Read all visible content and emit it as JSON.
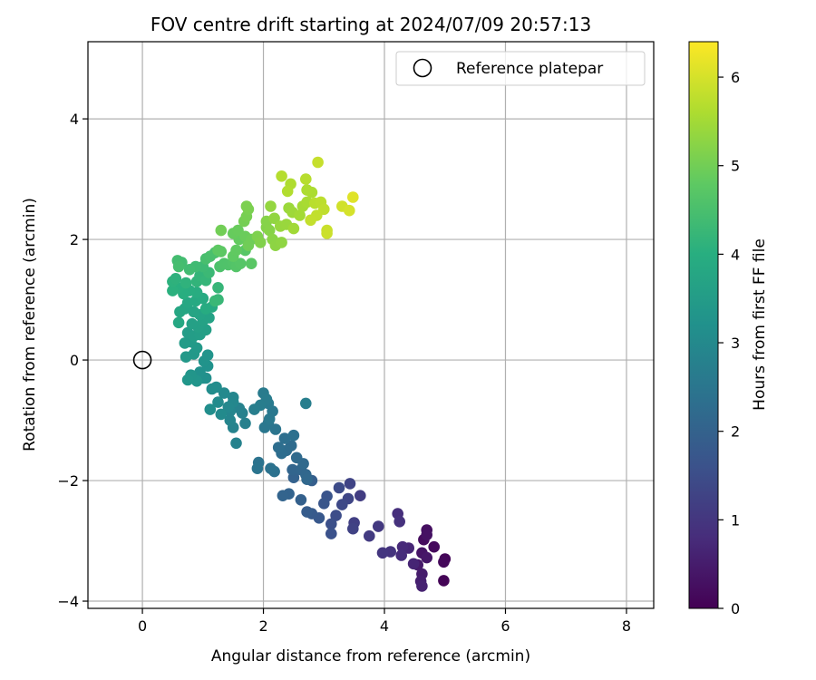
{
  "chart_data": {
    "type": "scatter",
    "title": "FOV centre drift starting at 2024/07/09 20:57:13",
    "xlabel": "Angular distance from reference (arcmin)",
    "ylabel": "Rotation from reference (arcmin)",
    "xlim": [
      -0.9,
      8.45
    ],
    "ylim": [
      -4.12,
      5.28
    ],
    "x_ticks": [
      0,
      2,
      4,
      6,
      8
    ],
    "y_ticks": [
      -4,
      -2,
      0,
      2,
      4
    ],
    "grid": true,
    "legend": {
      "position": "top-right",
      "entries": [
        {
          "label": "Reference platepar",
          "marker": "open-circle"
        }
      ]
    },
    "reference_point": {
      "x": 0,
      "y": 0
    },
    "colorbar": {
      "label": "Hours from first FF file",
      "colormap": "viridis",
      "range": [
        0,
        6.4
      ],
      "ticks": [
        0,
        1,
        2,
        3,
        4,
        5,
        6
      ]
    },
    "drift_points": [
      [
        4.98,
        -3.66,
        0.05
      ],
      [
        5.0,
        -3.3,
        0.08
      ],
      [
        4.98,
        -3.35,
        0.12
      ],
      [
        4.82,
        -3.1,
        0.16
      ],
      [
        4.65,
        -2.98,
        0.2
      ],
      [
        4.7,
        -2.82,
        0.25
      ],
      [
        4.7,
        -2.9,
        0.3
      ],
      [
        4.62,
        -3.2,
        0.35
      ],
      [
        4.7,
        -3.28,
        0.4
      ],
      [
        4.55,
        -3.4,
        0.45
      ],
      [
        4.62,
        -3.55,
        0.5
      ],
      [
        4.6,
        -3.67,
        0.55
      ],
      [
        4.62,
        -3.75,
        0.6
      ],
      [
        4.48,
        -3.38,
        0.65
      ],
      [
        4.4,
        -3.12,
        0.7
      ],
      [
        4.3,
        -3.1,
        0.75
      ],
      [
        4.28,
        -3.24,
        0.8
      ],
      [
        4.22,
        -2.55,
        0.85
      ],
      [
        4.25,
        -2.68,
        0.9
      ],
      [
        4.1,
        -3.18,
        0.95
      ],
      [
        3.97,
        -3.2,
        1.0
      ],
      [
        3.9,
        -2.76,
        1.05
      ],
      [
        3.75,
        -2.92,
        1.1
      ],
      [
        3.6,
        -2.25,
        1.15
      ],
      [
        3.5,
        -2.7,
        1.2
      ],
      [
        3.48,
        -2.8,
        1.25
      ],
      [
        3.43,
        -2.05,
        1.3
      ],
      [
        3.4,
        -2.3,
        1.35
      ],
      [
        3.3,
        -2.4,
        1.4
      ],
      [
        3.25,
        -2.12,
        1.45
      ],
      [
        3.2,
        -2.58,
        1.5
      ],
      [
        3.12,
        -2.72,
        1.55
      ],
      [
        3.12,
        -2.88,
        1.6
      ],
      [
        3.05,
        -2.26,
        1.65
      ],
      [
        3.0,
        -2.38,
        1.7
      ],
      [
        2.92,
        -2.62,
        1.75
      ],
      [
        2.8,
        -2.55,
        1.8
      ],
      [
        2.72,
        -2.52,
        1.85
      ],
      [
        2.8,
        -2.0,
        1.9
      ],
      [
        2.62,
        -2.32,
        1.95
      ],
      [
        2.5,
        -1.95,
        2.0
      ],
      [
        2.42,
        -2.22,
        2.02
      ],
      [
        2.32,
        -2.25,
        2.05
      ],
      [
        2.48,
        -1.82,
        2.08
      ],
      [
        2.62,
        -1.82,
        2.1
      ],
      [
        2.7,
        -1.9,
        2.12
      ],
      [
        2.72,
        -1.98,
        2.15
      ],
      [
        2.66,
        -1.72,
        2.18
      ],
      [
        2.55,
        -1.62,
        2.2
      ],
      [
        2.46,
        -1.42,
        2.22
      ],
      [
        2.38,
        -1.5,
        2.25
      ],
      [
        2.3,
        -1.55,
        2.28
      ],
      [
        2.25,
        -1.45,
        2.3
      ],
      [
        2.35,
        -1.3,
        2.32
      ],
      [
        2.5,
        -1.25,
        2.35
      ],
      [
        2.18,
        -1.85,
        2.38
      ],
      [
        2.12,
        -1.8,
        2.4
      ],
      [
        1.92,
        -1.7,
        2.42
      ],
      [
        1.9,
        -1.8,
        2.45
      ],
      [
        2.2,
        -1.15,
        2.48
      ],
      [
        2.08,
        -1.05,
        2.5
      ],
      [
        2.02,
        -1.12,
        2.52
      ],
      [
        2.15,
        -0.85,
        2.55
      ],
      [
        2.1,
        -0.98,
        2.58
      ],
      [
        2.08,
        -0.72,
        2.6
      ],
      [
        2.0,
        -0.55,
        2.62
      ],
      [
        2.05,
        -0.65,
        2.65
      ],
      [
        1.95,
        -0.75,
        2.68
      ],
      [
        1.85,
        -0.82,
        2.7
      ],
      [
        2.7,
        -0.72,
        2.72
      ],
      [
        1.7,
        -1.05,
        2.75
      ],
      [
        1.65,
        -0.88,
        2.78
      ],
      [
        1.6,
        -0.8,
        2.8
      ],
      [
        1.55,
        -1.38,
        2.82
      ],
      [
        1.5,
        -1.12,
        2.85
      ],
      [
        1.45,
        -1.0,
        2.88
      ],
      [
        1.45,
        -0.85,
        2.9
      ],
      [
        1.5,
        -0.62,
        2.92
      ],
      [
        1.5,
        -0.7,
        2.95
      ],
      [
        1.42,
        -0.78,
        2.98
      ],
      [
        1.35,
        -0.55,
        3.0
      ],
      [
        1.3,
        -0.9,
        3.02
      ],
      [
        1.25,
        -0.7,
        3.05
      ],
      [
        1.22,
        -0.45,
        3.08
      ],
      [
        1.15,
        -0.48,
        3.1
      ],
      [
        1.12,
        -0.82,
        3.12
      ],
      [
        1.05,
        -0.3,
        3.15
      ],
      [
        1.0,
        -0.3,
        3.18
      ],
      [
        0.95,
        -0.2,
        3.2
      ],
      [
        1.08,
        -0.1,
        3.22
      ],
      [
        1.02,
        -0.02,
        3.25
      ],
      [
        1.08,
        0.08,
        3.28
      ],
      [
        0.9,
        -0.35,
        3.3
      ],
      [
        0.8,
        -0.25,
        3.32
      ],
      [
        0.75,
        -0.33,
        3.35
      ],
      [
        0.85,
        0.1,
        3.38
      ],
      [
        0.72,
        0.05,
        3.4
      ],
      [
        0.9,
        0.2,
        3.42
      ],
      [
        0.8,
        0.3,
        3.45
      ],
      [
        0.7,
        0.28,
        3.48
      ],
      [
        0.75,
        0.45,
        3.5
      ],
      [
        0.85,
        0.4,
        3.52
      ],
      [
        0.95,
        0.42,
        3.55
      ],
      [
        1.05,
        0.5,
        3.58
      ],
      [
        0.92,
        0.55,
        3.6
      ],
      [
        0.82,
        0.6,
        3.62
      ],
      [
        1.0,
        0.65,
        3.65
      ],
      [
        1.1,
        0.7,
        3.68
      ],
      [
        0.95,
        0.75,
        3.7
      ],
      [
        0.85,
        0.8,
        3.72
      ],
      [
        0.7,
        0.85,
        3.75
      ],
      [
        0.62,
        0.8,
        3.78
      ],
      [
        0.6,
        0.62,
        3.8
      ],
      [
        0.75,
        0.95,
        3.82
      ],
      [
        0.88,
        0.98,
        3.85
      ],
      [
        1.0,
        1.02,
        3.88
      ],
      [
        1.15,
        0.88,
        3.9
      ],
      [
        1.05,
        0.85,
        3.92
      ],
      [
        0.9,
        1.12,
        3.95
      ],
      [
        0.78,
        1.15,
        3.98
      ],
      [
        0.68,
        1.1,
        4.0
      ],
      [
        0.6,
        1.2,
        4.02
      ],
      [
        0.5,
        1.15,
        4.05
      ],
      [
        0.5,
        1.3,
        4.08
      ],
      [
        0.55,
        1.35,
        4.1
      ],
      [
        0.72,
        1.28,
        4.12
      ],
      [
        0.9,
        1.3,
        4.15
      ],
      [
        0.95,
        1.4,
        4.18
      ],
      [
        1.05,
        1.32,
        4.2
      ],
      [
        1.25,
        1.2,
        4.22
      ],
      [
        1.25,
        1.0,
        4.25
      ],
      [
        1.2,
        0.98,
        4.28
      ],
      [
        1.1,
        1.45,
        4.3
      ],
      [
        1.0,
        1.55,
        4.32
      ],
      [
        0.88,
        1.55,
        4.35
      ],
      [
        0.78,
        1.5,
        4.38
      ],
      [
        0.65,
        1.62,
        4.4
      ],
      [
        0.58,
        1.65,
        4.42
      ],
      [
        0.6,
        1.55,
        4.45
      ],
      [
        1.05,
        1.68,
        4.48
      ],
      [
        1.12,
        1.72,
        4.5
      ],
      [
        1.2,
        1.78,
        4.52
      ],
      [
        1.28,
        1.55,
        4.55
      ],
      [
        1.35,
        1.6,
        4.58
      ],
      [
        1.42,
        1.58,
        4.6
      ],
      [
        1.5,
        1.62,
        4.62
      ],
      [
        1.55,
        1.55,
        4.65
      ],
      [
        1.62,
        1.6,
        4.68
      ],
      [
        1.7,
        1.82,
        4.7
      ],
      [
        1.8,
        1.6,
        4.72
      ],
      [
        1.3,
        1.8,
        4.75
      ],
      [
        1.25,
        1.82,
        4.78
      ],
      [
        1.5,
        1.72,
        4.8
      ],
      [
        1.55,
        1.82,
        4.82
      ],
      [
        1.6,
        2.0,
        4.85
      ],
      [
        1.5,
        2.1,
        4.88
      ],
      [
        1.58,
        2.15,
        4.9
      ],
      [
        1.7,
        2.05,
        4.92
      ],
      [
        1.8,
        2.0,
        4.95
      ],
      [
        1.75,
        1.9,
        4.98
      ],
      [
        1.3,
        2.15,
        5.0
      ],
      [
        1.68,
        2.3,
        5.02
      ],
      [
        1.72,
        2.38,
        5.05
      ],
      [
        1.75,
        2.5,
        5.08
      ],
      [
        1.72,
        2.55,
        5.1
      ],
      [
        1.9,
        2.05,
        5.12
      ],
      [
        1.95,
        1.95,
        5.15
      ],
      [
        2.05,
        2.2,
        5.18
      ],
      [
        2.05,
        2.3,
        5.2
      ],
      [
        2.1,
        2.15,
        5.22
      ],
      [
        2.15,
        2.0,
        5.25
      ],
      [
        2.2,
        1.9,
        5.28
      ],
      [
        2.3,
        1.95,
        5.3
      ],
      [
        2.18,
        2.35,
        5.32
      ],
      [
        2.12,
        2.55,
        5.35
      ],
      [
        2.28,
        2.22,
        5.38
      ],
      [
        2.38,
        2.25,
        5.4
      ],
      [
        2.42,
        2.52,
        5.42
      ],
      [
        2.48,
        2.45,
        5.45
      ],
      [
        2.5,
        2.18,
        5.48
      ],
      [
        2.6,
        2.4,
        5.5
      ],
      [
        2.65,
        2.55,
        5.52
      ],
      [
        2.72,
        2.62,
        5.55
      ],
      [
        2.8,
        2.78,
        5.58
      ],
      [
        2.72,
        2.82,
        5.6
      ],
      [
        2.45,
        2.92,
        5.62
      ],
      [
        2.4,
        2.8,
        5.65
      ],
      [
        2.3,
        3.05,
        5.68
      ],
      [
        2.7,
        3.0,
        5.7
      ],
      [
        2.85,
        2.6,
        5.72
      ],
      [
        2.95,
        2.62,
        5.75
      ],
      [
        3.0,
        2.5,
        5.78
      ],
      [
        2.88,
        2.4,
        5.8
      ],
      [
        2.78,
        2.32,
        5.82
      ],
      [
        2.9,
        3.28,
        5.85
      ],
      [
        3.05,
        2.15,
        5.88
      ],
      [
        3.05,
        2.1,
        5.9
      ],
      [
        3.3,
        2.55,
        5.95
      ],
      [
        3.42,
        2.48,
        6.0
      ],
      [
        3.48,
        2.7,
        6.1
      ]
    ]
  }
}
